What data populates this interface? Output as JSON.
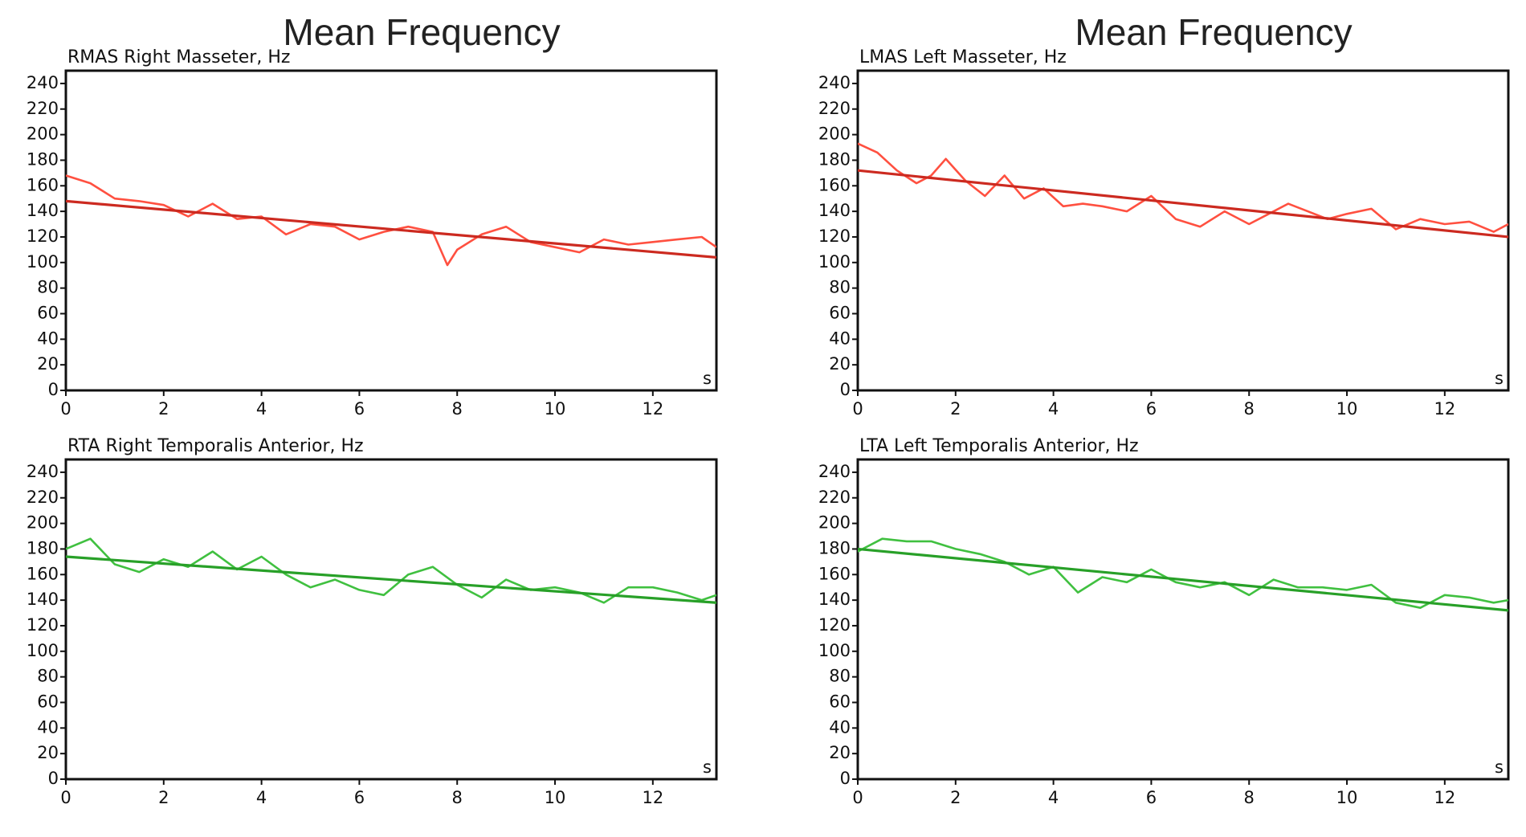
{
  "chart_data": [
    {
      "type": "line",
      "column_title": "Mean Frequency",
      "title": "RMAS Right Masseter, Hz",
      "xunit": "s",
      "xlim": [
        0,
        13.3
      ],
      "ylim": [
        0,
        250
      ],
      "xticks": [
        0,
        2,
        4,
        6,
        8,
        10,
        12
      ],
      "yticks": [
        0,
        20,
        40,
        60,
        80,
        100,
        120,
        140,
        160,
        180,
        200,
        220,
        240
      ],
      "series_color": "#ff5040",
      "trend_color": "#cc2a20",
      "x": [
        0,
        0.5,
        1,
        1.5,
        2,
        2.5,
        3,
        3.5,
        4,
        4.5,
        5,
        5.5,
        6,
        6.5,
        7,
        7.5,
        7.8,
        8,
        8.5,
        9,
        9.5,
        10,
        10.5,
        11,
        11.5,
        12,
        12.5,
        13,
        13.3
      ],
      "values": [
        168,
        162,
        150,
        148,
        145,
        136,
        146,
        134,
        136,
        122,
        130,
        128,
        118,
        124,
        128,
        124,
        98,
        110,
        122,
        128,
        116,
        112,
        108,
        118,
        114,
        116,
        118,
        120,
        112
      ],
      "trend": [
        [
          0,
          148
        ],
        [
          13.3,
          104
        ]
      ]
    },
    {
      "type": "line",
      "column_title": "Mean Frequency",
      "title": "LMAS Left Masseter, Hz",
      "xunit": "s",
      "xlim": [
        0,
        13.3
      ],
      "ylim": [
        0,
        250
      ],
      "xticks": [
        0,
        2,
        4,
        6,
        8,
        10,
        12
      ],
      "yticks": [
        0,
        20,
        40,
        60,
        80,
        100,
        120,
        140,
        160,
        180,
        200,
        220,
        240
      ],
      "series_color": "#ff5040",
      "trend_color": "#cc2a20",
      "x": [
        0,
        0.4,
        0.8,
        1.2,
        1.5,
        1.8,
        2.2,
        2.6,
        3,
        3.4,
        3.8,
        4.2,
        4.6,
        5,
        5.5,
        6,
        6.5,
        7,
        7.5,
        8,
        8.4,
        8.8,
        9.2,
        9.6,
        10,
        10.5,
        11,
        11.5,
        12,
        12.5,
        13,
        13.3
      ],
      "values": [
        193,
        186,
        172,
        162,
        168,
        181,
        164,
        152,
        168,
        150,
        158,
        144,
        146,
        144,
        140,
        152,
        134,
        128,
        140,
        130,
        138,
        146,
        140,
        134,
        138,
        142,
        126,
        134,
        130,
        132,
        124,
        130
      ],
      "trend": [
        [
          0,
          172
        ],
        [
          13.3,
          120
        ]
      ]
    },
    {
      "type": "line",
      "title": "RTA Right Temporalis Anterior, Hz",
      "xunit": "s",
      "xlim": [
        0,
        13.3
      ],
      "ylim": [
        0,
        250
      ],
      "xticks": [
        0,
        2,
        4,
        6,
        8,
        10,
        12
      ],
      "yticks": [
        0,
        20,
        40,
        60,
        80,
        100,
        120,
        140,
        160,
        180,
        200,
        220,
        240
      ],
      "series_color": "#40c040",
      "trend_color": "#28a028",
      "x": [
        0,
        0.5,
        1,
        1.5,
        2,
        2.5,
        3,
        3.5,
        4,
        4.5,
        5,
        5.5,
        6,
        6.5,
        7,
        7.5,
        8,
        8.5,
        9,
        9.5,
        10,
        10.5,
        11,
        11.5,
        12,
        12.5,
        13,
        13.3
      ],
      "values": [
        180,
        188,
        168,
        162,
        172,
        166,
        178,
        164,
        174,
        160,
        150,
        156,
        148,
        144,
        160,
        166,
        152,
        142,
        156,
        148,
        150,
        146,
        138,
        150,
        150,
        146,
        140,
        144
      ],
      "trend": [
        [
          0,
          174
        ],
        [
          13.3,
          138
        ]
      ]
    },
    {
      "type": "line",
      "title": "LTA Left Temporalis Anterior, Hz",
      "xunit": "s",
      "xlim": [
        0,
        13.3
      ],
      "ylim": [
        0,
        250
      ],
      "xticks": [
        0,
        2,
        4,
        6,
        8,
        10,
        12
      ],
      "yticks": [
        0,
        20,
        40,
        60,
        80,
        100,
        120,
        140,
        160,
        180,
        200,
        220,
        240
      ],
      "series_color": "#40c040",
      "trend_color": "#28a028",
      "x": [
        0,
        0.5,
        1,
        1.5,
        2,
        2.5,
        3,
        3.5,
        4,
        4.5,
        5,
        5.5,
        6,
        6.5,
        7,
        7.5,
        8,
        8.5,
        9,
        9.5,
        10,
        10.5,
        11,
        11.5,
        12,
        12.5,
        13,
        13.3
      ],
      "values": [
        178,
        188,
        186,
        186,
        180,
        176,
        170,
        160,
        166,
        146,
        158,
        154,
        164,
        154,
        150,
        154,
        144,
        156,
        150,
        150,
        148,
        152,
        138,
        134,
        144,
        142,
        138,
        140
      ],
      "trend": [
        [
          0,
          180
        ],
        [
          13.3,
          132
        ]
      ]
    }
  ]
}
